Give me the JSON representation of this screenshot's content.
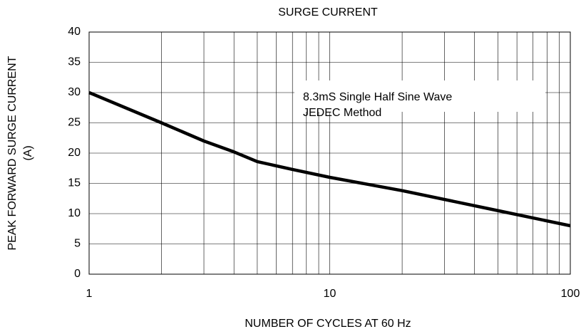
{
  "chart_data": {
    "type": "line",
    "title": "SURGE CURRENT",
    "x_label": "NUMBER OF CYCLES AT 60 Hz",
    "y_label": [
      "PEAK FORWARD SURGE CURRENT",
      "(A)"
    ],
    "annotation": [
      "8.3mS Single Half Sine Wave",
      "JEDEC Method"
    ],
    "x": [
      1,
      2,
      3,
      4,
      5,
      7,
      10,
      20,
      50,
      100
    ],
    "series": [
      {
        "name": "Surge current",
        "color": "#000000",
        "values": [
          30,
          25,
          22,
          20.2,
          18.6,
          17.3,
          16,
          13.8,
          10.5,
          8
        ]
      }
    ],
    "xlim": [
      1,
      100
    ],
    "xticks": [
      1,
      10,
      100
    ],
    "xscale": "log",
    "ylim": [
      0,
      40
    ],
    "yticks": [
      0,
      5,
      10,
      15,
      20,
      25,
      30,
      35,
      40
    ],
    "grid": true
  }
}
